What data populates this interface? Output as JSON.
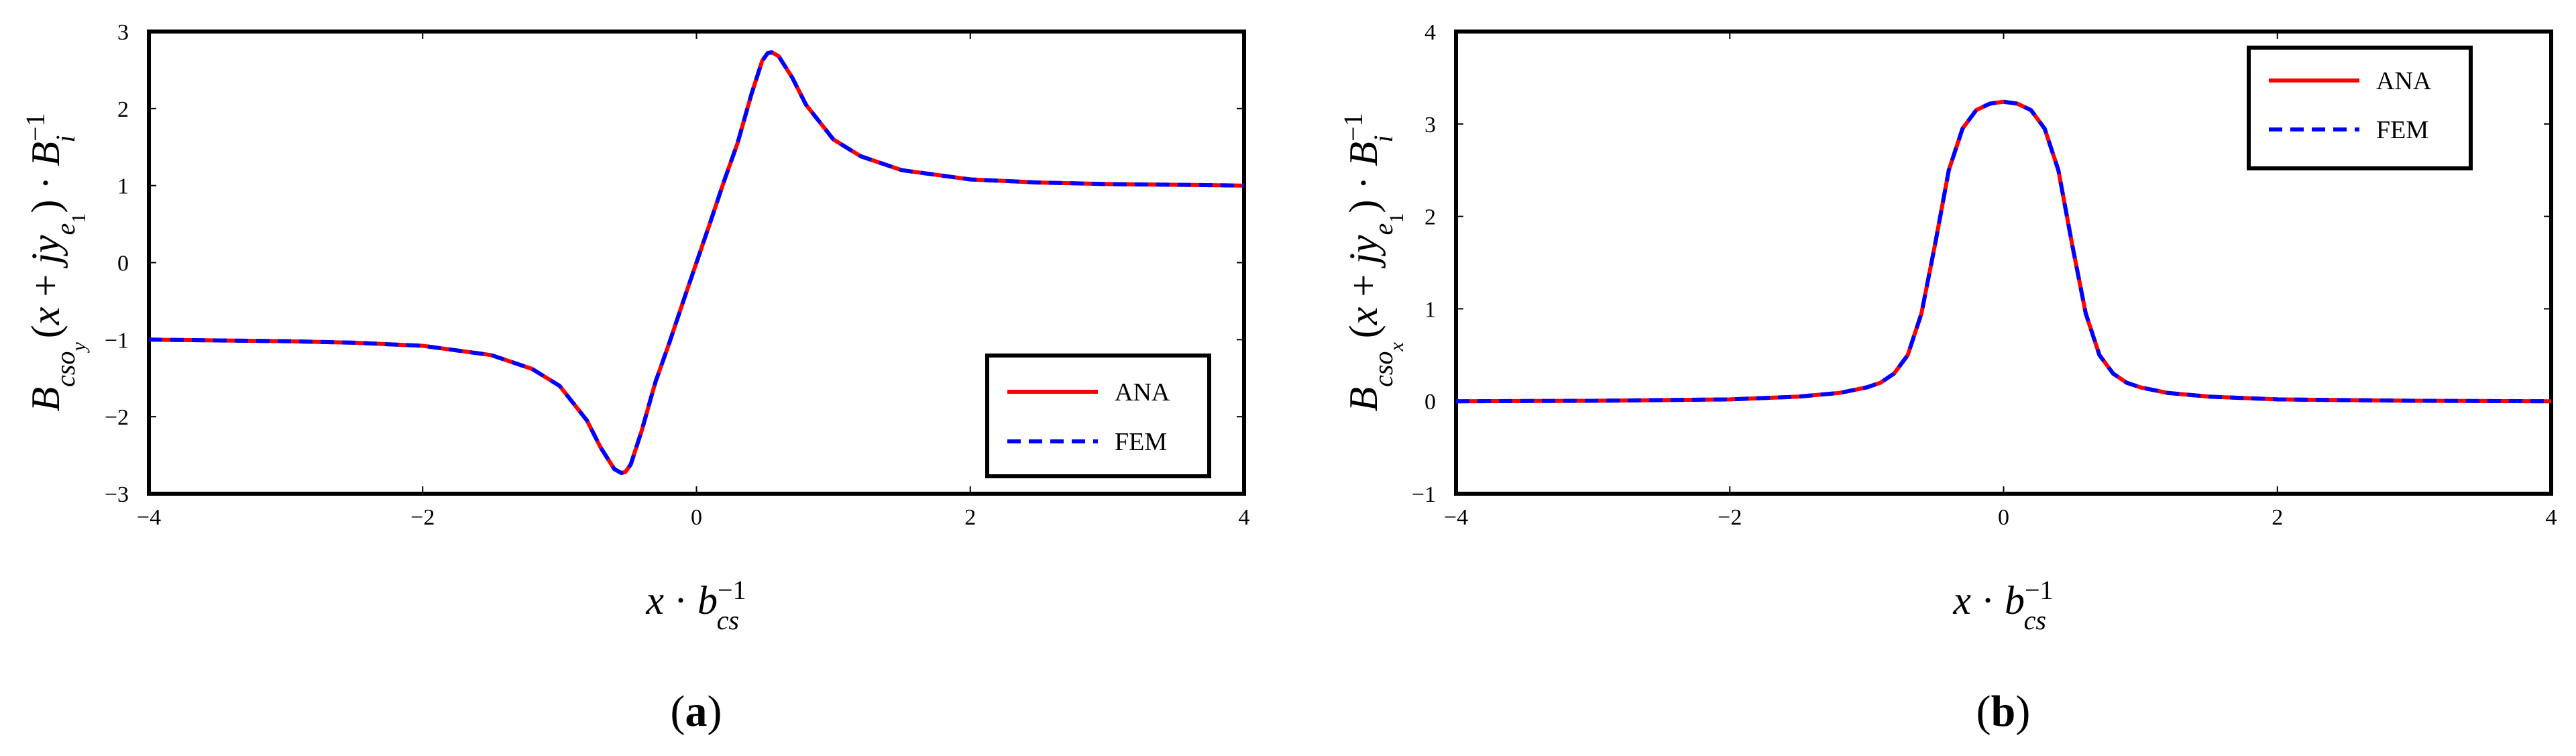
{
  "figure": {
    "panels": [
      {
        "id": "a",
        "caption_open": "(",
        "caption_letter": "a",
        "caption_close": ")"
      },
      {
        "id": "b",
        "caption_open": "(",
        "caption_letter": "b",
        "caption_close": ")"
      }
    ]
  },
  "chart_data": [
    {
      "type": "line",
      "title": "",
      "xlabel": "x · b_cs^{-1}",
      "ylabel": "B_{cso_y}(x + jy_{e_1}) · B_i^{-1}",
      "xlim": [
        -4,
        4
      ],
      "ylim": [
        -3,
        3
      ],
      "xticks": [
        "−4",
        "−2",
        "0",
        "2",
        "4"
      ],
      "yticks": [
        "−3",
        "−2",
        "−1",
        "0",
        "1",
        "2",
        "3"
      ],
      "legend": {
        "position": "bottom-right",
        "entries": [
          "ANA",
          "FEM"
        ]
      },
      "series": [
        {
          "name": "ANA",
          "color": "#ff0000",
          "dash": "solid",
          "x": [
            -4.0,
            -3.5,
            -3.0,
            -2.5,
            -2.0,
            -1.5,
            -1.2,
            -1.0,
            -0.8,
            -0.7,
            -0.6,
            -0.55,
            -0.52,
            -0.48,
            -0.4,
            -0.3,
            -0.2,
            -0.1,
            0.0,
            0.1,
            0.2,
            0.3,
            0.4,
            0.48,
            0.52,
            0.55,
            0.6,
            0.7,
            0.8,
            1.0,
            1.2,
            1.5,
            2.0,
            2.5,
            3.0,
            3.5,
            4.0
          ],
          "y": [
            -1.0,
            -1.01,
            -1.02,
            -1.04,
            -1.08,
            -1.2,
            -1.38,
            -1.6,
            -2.05,
            -2.4,
            -2.68,
            -2.73,
            -2.72,
            -2.62,
            -2.18,
            -1.55,
            -1.05,
            -0.52,
            0.0,
            0.52,
            1.05,
            1.55,
            2.18,
            2.62,
            2.72,
            2.73,
            2.68,
            2.4,
            2.05,
            1.6,
            1.38,
            1.2,
            1.08,
            1.04,
            1.02,
            1.01,
            1.0
          ]
        },
        {
          "name": "FEM",
          "color": "#0000ff",
          "dash": "dashed",
          "x": [
            -4.0,
            -3.5,
            -3.0,
            -2.5,
            -2.0,
            -1.5,
            -1.2,
            -1.0,
            -0.8,
            -0.7,
            -0.6,
            -0.55,
            -0.52,
            -0.48,
            -0.4,
            -0.3,
            -0.2,
            -0.1,
            0.0,
            0.1,
            0.2,
            0.3,
            0.4,
            0.48,
            0.52,
            0.55,
            0.6,
            0.7,
            0.8,
            1.0,
            1.2,
            1.5,
            2.0,
            2.5,
            3.0,
            3.5,
            4.0
          ],
          "y": [
            -1.0,
            -1.01,
            -1.02,
            -1.04,
            -1.08,
            -1.2,
            -1.38,
            -1.6,
            -2.05,
            -2.4,
            -2.68,
            -2.73,
            -2.72,
            -2.62,
            -2.18,
            -1.55,
            -1.05,
            -0.52,
            0.0,
            0.52,
            1.05,
            1.55,
            2.18,
            2.62,
            2.72,
            2.73,
            2.68,
            2.4,
            2.05,
            1.6,
            1.38,
            1.2,
            1.08,
            1.04,
            1.02,
            1.01,
            1.0
          ]
        }
      ]
    },
    {
      "type": "line",
      "title": "",
      "xlabel": "x · b_cs^{-1}",
      "ylabel": "B_{cso_x}(x + jy_{e_1}) · B_i^{-1}",
      "xlim": [
        -4,
        4
      ],
      "ylim": [
        -1,
        4
      ],
      "xticks": [
        "−4",
        "−2",
        "0",
        "2",
        "4"
      ],
      "yticks": [
        "−1",
        "0",
        "1",
        "2",
        "3",
        "4"
      ],
      "legend": {
        "position": "top-right",
        "entries": [
          "ANA",
          "FEM"
        ]
      },
      "series": [
        {
          "name": "ANA",
          "color": "#ff0000",
          "dash": "solid",
          "x": [
            -4.0,
            -3.0,
            -2.0,
            -1.5,
            -1.2,
            -1.0,
            -0.9,
            -0.8,
            -0.7,
            -0.6,
            -0.5,
            -0.4,
            -0.3,
            -0.2,
            -0.1,
            0.0,
            0.1,
            0.2,
            0.3,
            0.4,
            0.5,
            0.6,
            0.7,
            0.8,
            0.9,
            1.0,
            1.2,
            1.5,
            2.0,
            3.0,
            4.0
          ],
          "y": [
            0.0,
            0.005,
            0.02,
            0.05,
            0.09,
            0.15,
            0.2,
            0.3,
            0.5,
            0.95,
            1.7,
            2.5,
            2.95,
            3.15,
            3.22,
            3.24,
            3.22,
            3.15,
            2.95,
            2.5,
            1.7,
            0.95,
            0.5,
            0.3,
            0.2,
            0.15,
            0.09,
            0.05,
            0.02,
            0.005,
            0.0
          ]
        },
        {
          "name": "FEM",
          "color": "#0000ff",
          "dash": "dashed",
          "x": [
            -4.0,
            -3.0,
            -2.0,
            -1.5,
            -1.2,
            -1.0,
            -0.9,
            -0.8,
            -0.7,
            -0.6,
            -0.5,
            -0.4,
            -0.3,
            -0.2,
            -0.1,
            0.0,
            0.1,
            0.2,
            0.3,
            0.4,
            0.5,
            0.6,
            0.7,
            0.8,
            0.9,
            1.0,
            1.2,
            1.5,
            2.0,
            3.0,
            4.0
          ],
          "y": [
            0.0,
            0.005,
            0.02,
            0.05,
            0.09,
            0.15,
            0.2,
            0.3,
            0.5,
            0.95,
            1.7,
            2.5,
            2.95,
            3.15,
            3.22,
            3.24,
            3.22,
            3.15,
            2.95,
            2.5,
            1.7,
            0.95,
            0.5,
            0.3,
            0.2,
            0.15,
            0.09,
            0.05,
            0.02,
            0.005,
            0.0
          ]
        }
      ]
    }
  ]
}
